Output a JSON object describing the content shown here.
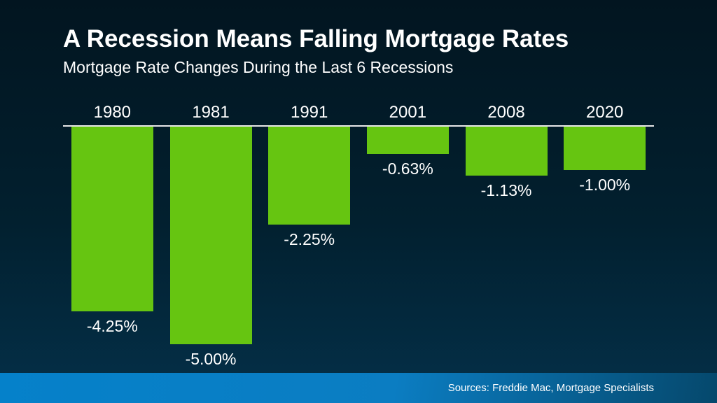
{
  "slide": {
    "title": "A Recession Means Falling Mortgage Rates",
    "subtitle": "Mortgage Rate Changes During the Last 6 Recessions",
    "footer": {
      "sources_text": "Sources: Freddie Mac, Mortgage Specialists"
    }
  },
  "colors": {
    "background_top": "#021520",
    "background_bottom": "#043049",
    "bar": "#66c511",
    "baseline": "#e8e8e8",
    "text": "#ffffff",
    "footer_left": "#0581ca",
    "footer_right": "#05486c"
  },
  "chart_data": {
    "type": "bar",
    "title": "A Recession Means Falling Mortgage Rates",
    "subtitle": "Mortgage Rate Changes During the Last 6 Recessions",
    "categories": [
      "1980",
      "1981",
      "1991",
      "2001",
      "2008",
      "2020"
    ],
    "values": [
      -4.25,
      -5.0,
      -2.25,
      -0.63,
      -1.13,
      -1.0
    ],
    "value_labels": [
      "-4.25%",
      "-5.00%",
      "-2.25%",
      "-0.63%",
      "-1.13%",
      "-1.00%"
    ],
    "xlabel": "",
    "ylabel": "",
    "ylim": [
      -5,
      0
    ],
    "baseline": 0,
    "grid": false,
    "legend": false,
    "bar_color": "#66c511",
    "orientation": "vertical-below-baseline"
  }
}
